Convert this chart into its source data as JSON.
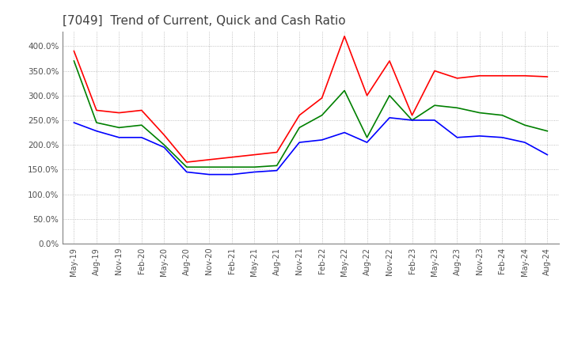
{
  "title": "[7049]  Trend of Current, Quick and Cash Ratio",
  "x_labels": [
    "May-19",
    "Aug-19",
    "Nov-19",
    "Feb-20",
    "May-20",
    "Aug-20",
    "Nov-20",
    "Feb-21",
    "May-21",
    "Aug-21",
    "Nov-21",
    "Feb-22",
    "May-22",
    "Aug-22",
    "Nov-22",
    "Feb-23",
    "May-23",
    "Aug-23",
    "Nov-23",
    "Feb-24",
    "May-24",
    "Aug-24"
  ],
  "current_ratio": [
    390,
    270,
    265,
    270,
    220,
    165,
    170,
    175,
    180,
    185,
    260,
    295,
    420,
    300,
    370,
    260,
    350,
    335,
    340,
    340,
    340,
    338
  ],
  "quick_ratio": [
    370,
    245,
    235,
    240,
    200,
    155,
    155,
    155,
    155,
    158,
    235,
    260,
    310,
    215,
    300,
    250,
    280,
    275,
    265,
    260,
    240,
    228
  ],
  "cash_ratio": [
    245,
    228,
    215,
    215,
    195,
    145,
    140,
    140,
    145,
    148,
    205,
    210,
    225,
    205,
    255,
    250,
    250,
    215,
    218,
    215,
    205,
    180
  ],
  "ylim": [
    0,
    430
  ],
  "yticks": [
    0,
    50,
    100,
    150,
    200,
    250,
    300,
    350,
    400
  ],
  "current_color": "#ff0000",
  "quick_color": "#008000",
  "cash_color": "#0000ff",
  "bg_color": "#ffffff",
  "grid_color": "#b0b0b0",
  "title_color": "#404040"
}
